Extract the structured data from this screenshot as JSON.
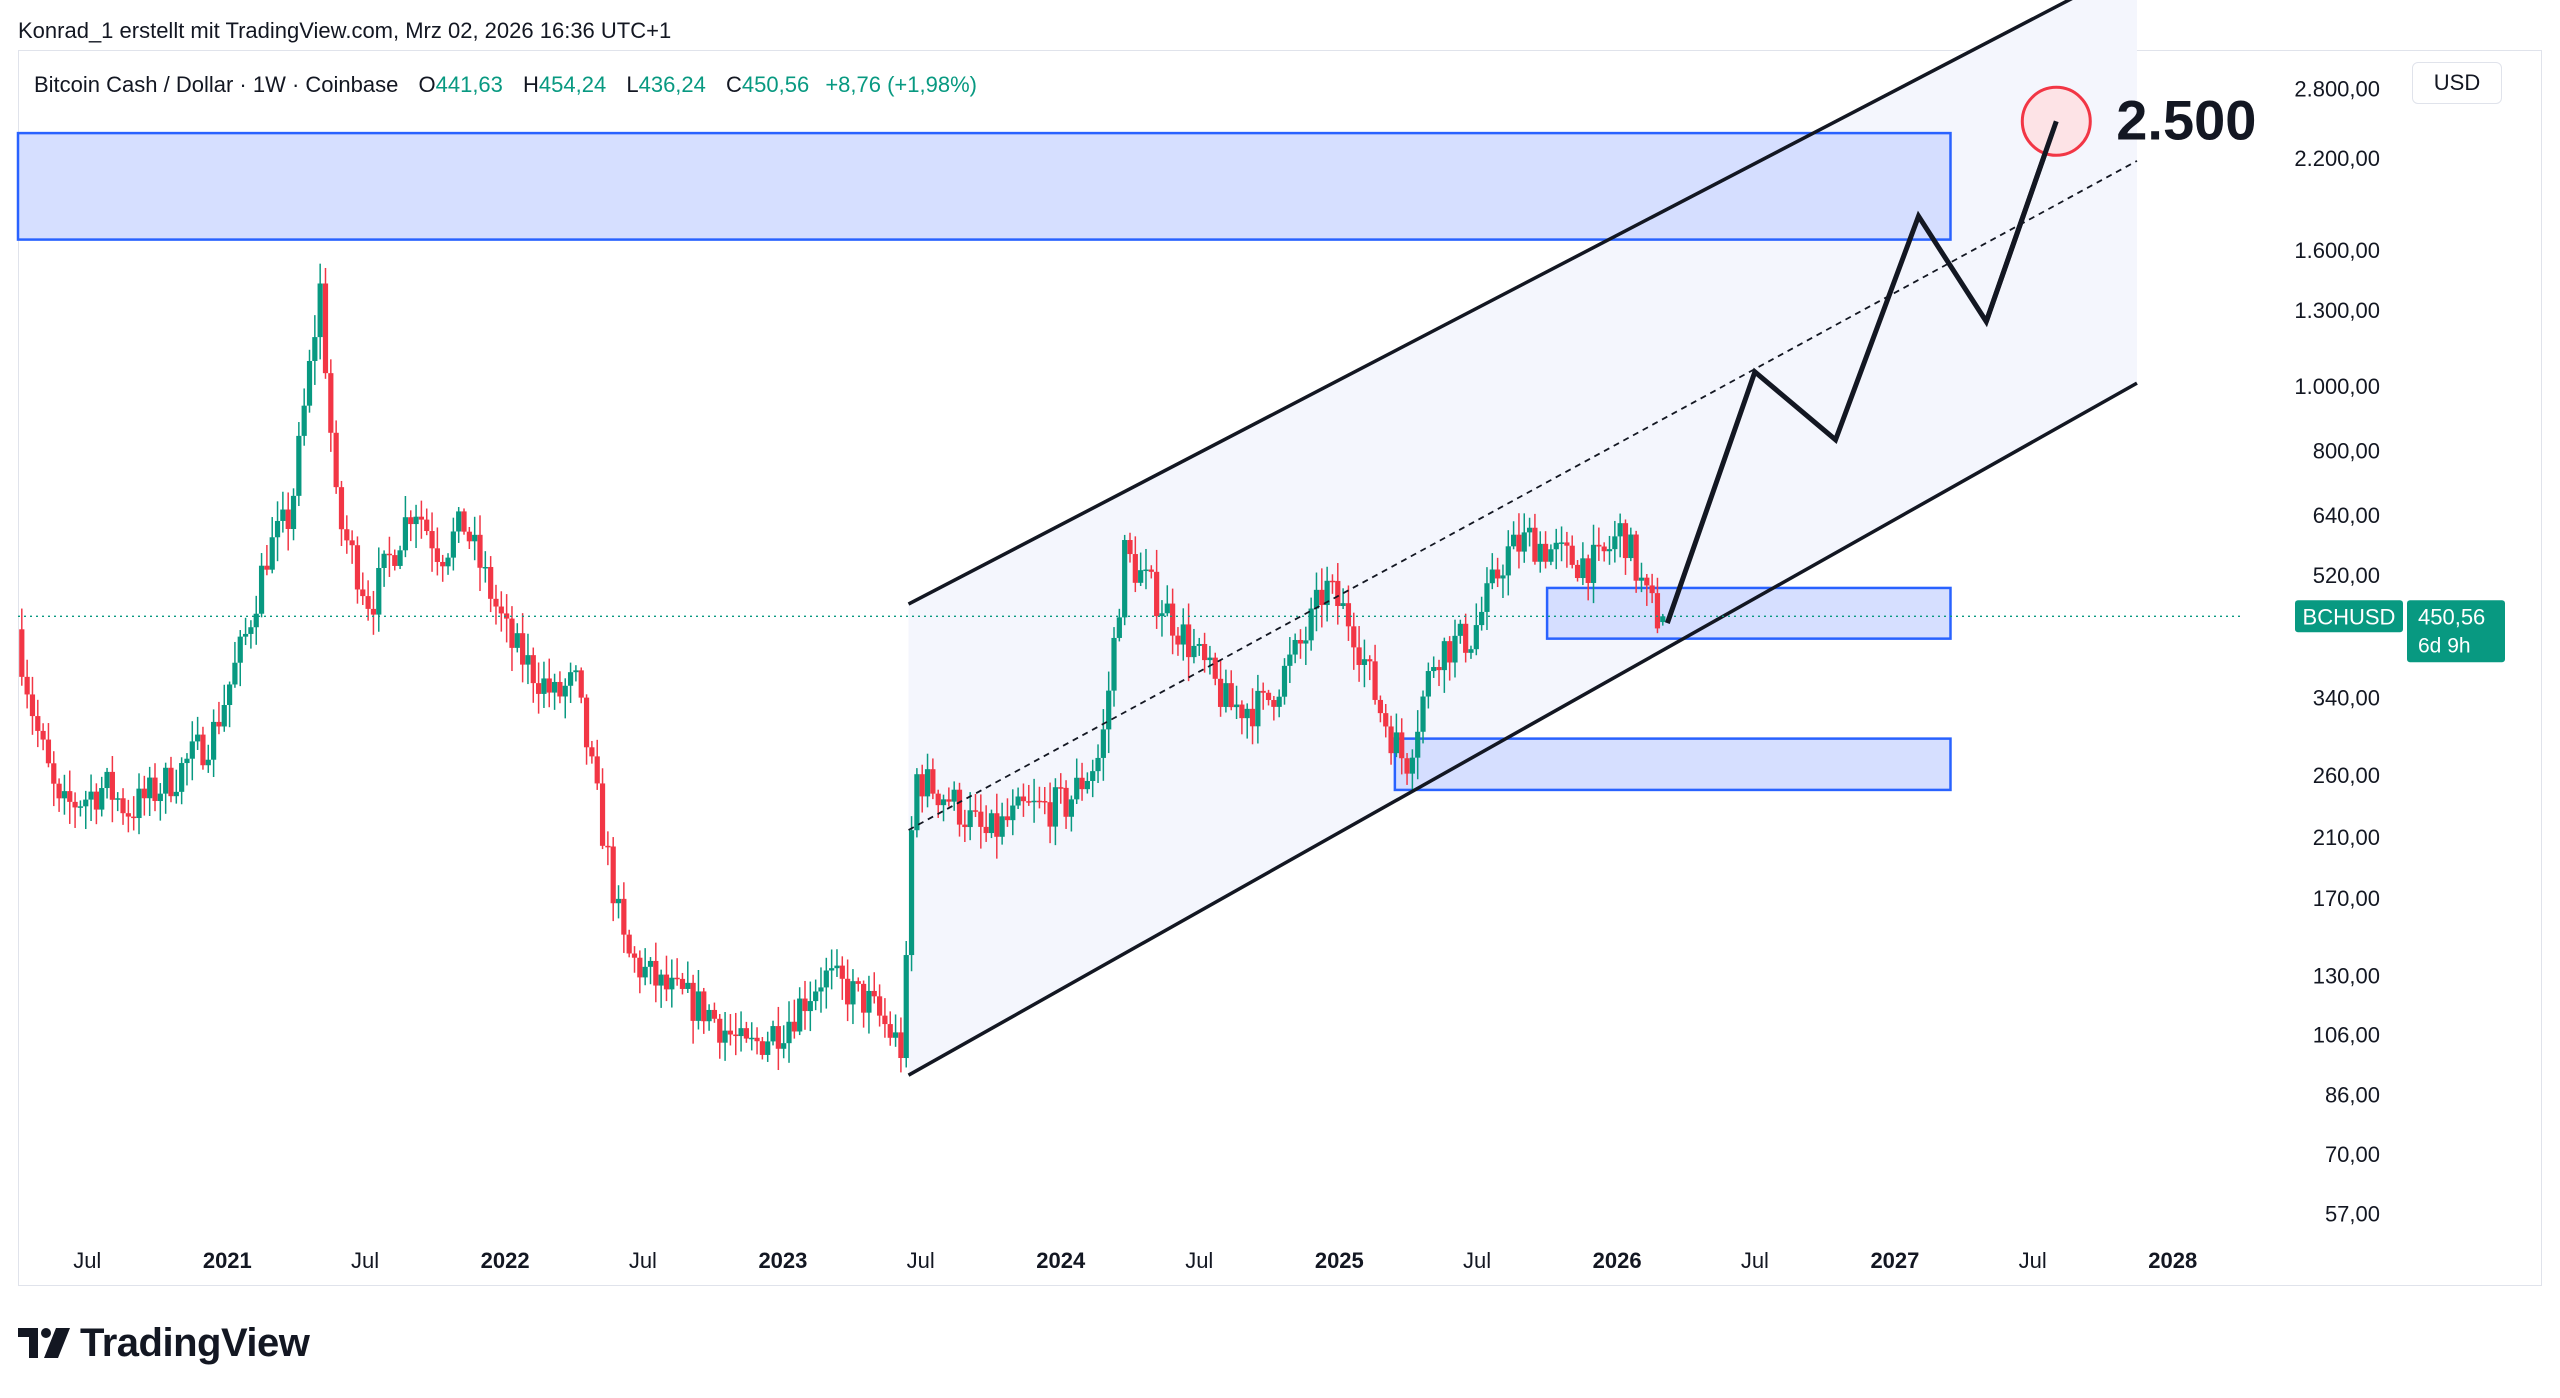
{
  "header": {
    "attribution": "Konrad_1 erstellt mit TradingView.com, Mrz 02, 2026 16:36 UTC+1"
  },
  "legend": {
    "symbol": "Bitcoin Cash / Dollar · 1W · Coinbase",
    "o_label": "O",
    "o_value": "441,63",
    "h_label": "H",
    "h_value": "454,24",
    "l_label": "L",
    "l_value": "436,24",
    "c_label": "C",
    "c_value": "450,56",
    "change": "+8,76 (+1,98%)"
  },
  "currency_button": "USD",
  "brand": "TradingView",
  "colors": {
    "up": "#089981",
    "down": "#f23645",
    "zone_fill": "#d1dcff",
    "zone_stroke": "#2962ff",
    "channel_fill": "#f4f6fd",
    "line": "#131722",
    "target_circle": "#f23645"
  },
  "chart_data": {
    "type": "candlestick",
    "symbol": "BCHUSD",
    "interval": "1W",
    "y_scale": "log",
    "ylim": [
      52,
      3200
    ],
    "y_ticks": [
      "2.800,00",
      "2.200,00",
      "1.600,00",
      "1.300,00",
      "1.000,00",
      "800,00",
      "640,00",
      "520,00",
      "340,00",
      "260,00",
      "210,00",
      "170,00",
      "130,00",
      "106,00",
      "86,00",
      "70,00",
      "57,00"
    ],
    "y_tick_values": [
      2800,
      2200,
      1600,
      1300,
      1000,
      800,
      640,
      520,
      340,
      260,
      210,
      170,
      130,
      106,
      86,
      70,
      57
    ],
    "xlim": [
      "2020-04-01",
      "2028-04-01"
    ],
    "x_ticks": [
      {
        "label": "Jul",
        "date": "2020-07-01",
        "bold": false
      },
      {
        "label": "2021",
        "date": "2021-01-01",
        "bold": true
      },
      {
        "label": "Jul",
        "date": "2021-07-01",
        "bold": false
      },
      {
        "label": "2022",
        "date": "2022-01-01",
        "bold": true
      },
      {
        "label": "Jul",
        "date": "2022-07-01",
        "bold": false
      },
      {
        "label": "2023",
        "date": "2023-01-01",
        "bold": true
      },
      {
        "label": "Jul",
        "date": "2023-07-01",
        "bold": false
      },
      {
        "label": "2024",
        "date": "2024-01-01",
        "bold": true
      },
      {
        "label": "Jul",
        "date": "2024-07-01",
        "bold": false
      },
      {
        "label": "2025",
        "date": "2025-01-01",
        "bold": true
      },
      {
        "label": "Jul",
        "date": "2025-07-01",
        "bold": false
      },
      {
        "label": "2026",
        "date": "2026-01-01",
        "bold": true
      },
      {
        "label": "Jul",
        "date": "2026-07-01",
        "bold": false
      },
      {
        "label": "2027",
        "date": "2027-01-01",
        "bold": true
      },
      {
        "label": "Jul",
        "date": "2027-07-01",
        "bold": false
      },
      {
        "label": "2028",
        "date": "2028-01-01",
        "bold": true
      }
    ],
    "price_anchors": [
      [
        "2020-04-01",
        460
      ],
      [
        "2020-05-01",
        310
      ],
      [
        "2020-06-01",
        230
      ],
      [
        "2020-08-01",
        250
      ],
      [
        "2020-09-01",
        230
      ],
      [
        "2020-11-01",
        260
      ],
      [
        "2020-12-20",
        300
      ],
      [
        "2021-02-01",
        420
      ],
      [
        "2021-03-01",
        560
      ],
      [
        "2021-04-01",
        640
      ],
      [
        "2021-05-10",
        1400
      ],
      [
        "2021-06-01",
        640
      ],
      [
        "2021-07-15",
        470
      ],
      [
        "2021-09-10",
        670
      ],
      [
        "2021-10-15",
        560
      ],
      [
        "2021-11-15",
        620
      ],
      [
        "2022-01-15",
        410
      ],
      [
        "2022-03-15",
        340
      ],
      [
        "2022-04-10",
        360
      ],
      [
        "2022-06-15",
        140
      ],
      [
        "2022-08-01",
        125
      ],
      [
        "2022-10-01",
        115
      ],
      [
        "2022-11-20",
        100
      ],
      [
        "2023-01-10",
        110
      ],
      [
        "2023-03-01",
        130
      ],
      [
        "2023-05-01",
        118
      ],
      [
        "2023-06-15",
        100
      ],
      [
        "2023-06-29",
        260
      ],
      [
        "2023-08-15",
        240
      ],
      [
        "2023-10-01",
        210
      ],
      [
        "2023-11-20",
        230
      ],
      [
        "2024-01-15",
        235
      ],
      [
        "2024-03-01",
        280
      ],
      [
        "2024-04-01",
        560
      ],
      [
        "2024-05-20",
        470
      ],
      [
        "2024-07-01",
        400
      ],
      [
        "2024-08-15",
        330
      ],
      [
        "2024-10-01",
        330
      ],
      [
        "2024-11-25",
        420
      ],
      [
        "2024-12-20",
        500
      ],
      [
        "2025-01-25",
        440
      ],
      [
        "2025-03-01",
        330
      ],
      [
        "2025-04-05",
        270
      ],
      [
        "2025-05-15",
        400
      ],
      [
        "2025-07-01",
        420
      ],
      [
        "2025-08-15",
        560
      ],
      [
        "2025-09-15",
        590
      ],
      [
        "2025-11-01",
        550
      ],
      [
        "2025-12-15",
        540
      ],
      [
        "2026-01-15",
        610
      ],
      [
        "2026-02-15",
        480
      ],
      [
        "2026-03-02",
        450.56
      ]
    ],
    "last_price": {
      "label": "BCHUSD",
      "value": "450,56",
      "countdown": "6d 9h"
    },
    "drawings": {
      "zones": [
        {
          "name": "resistance-zone",
          "x_start": "2020-04-01",
          "x_end": "2027-03-15",
          "y_low": 1660,
          "y_high": 2400
        },
        {
          "name": "support-zone-upper",
          "x_start": "2025-10-01",
          "x_end": "2027-03-15",
          "y_low": 417,
          "y_high": 497
        },
        {
          "name": "support-zone-lower",
          "x_start": "2025-03-15",
          "x_end": "2027-03-15",
          "y_low": 247,
          "y_high": 295
        }
      ],
      "channel": {
        "x_start": "2023-06-15",
        "x_end": "2027-11-15",
        "lower": [
          92,
          1010
        ],
        "upper": [
          470,
          4300
        ],
        "mid": [
          215,
          2180
        ]
      },
      "projection_path": [
        [
          "2026-03-08",
          440
        ],
        [
          "2026-07-01",
          1050
        ],
        [
          "2026-10-15",
          830
        ],
        [
          "2027-02-01",
          1800
        ],
        [
          "2027-05-01",
          1250
        ],
        [
          "2027-08-01",
          2500
        ]
      ],
      "target": {
        "date": "2027-08-01",
        "value": 2500,
        "label": "2.500"
      }
    }
  }
}
